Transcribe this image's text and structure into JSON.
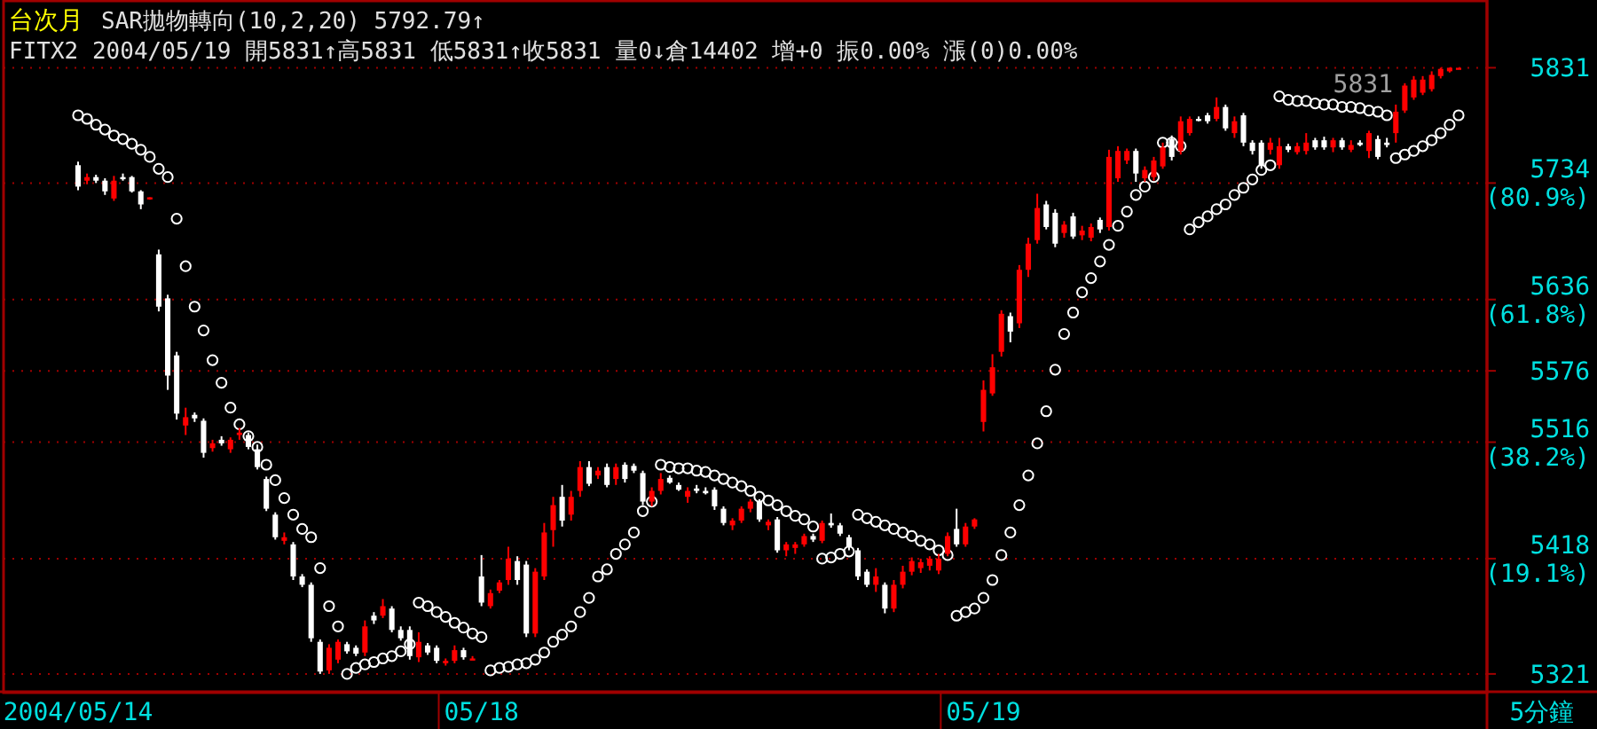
{
  "chart_data": {
    "type": "candlestick",
    "title": "台次月",
    "subtitle": "SAR拋物轉向(10,2,20) 5792.79↑",
    "annotations": [
      "FITX2 2004/05/19 開5831↑高5831 低5831↑收5831 量0↓倉14402 增+0 振0.00% 漲(0)0.00%",
      "5831"
    ],
    "xlabel": "5分鐘",
    "categories": [
      "2004/05/14",
      null,
      null,
      null,
      null,
      null,
      null,
      null,
      null,
      null,
      null,
      null,
      null,
      null,
      null,
      null,
      null,
      null,
      null,
      null,
      null,
      null,
      null,
      null,
      null,
      null,
      null,
      null,
      null,
      null,
      null,
      null,
      null,
      null,
      null,
      null,
      null,
      null,
      null,
      null,
      null,
      null,
      null,
      null,
      null,
      "05/18",
      null,
      null,
      null,
      null,
      null,
      null,
      null,
      null,
      null,
      null,
      null,
      null,
      null,
      null,
      null,
      null,
      null,
      null,
      null,
      null,
      null,
      null,
      null,
      null,
      null,
      null,
      null,
      null,
      null,
      null,
      null,
      null,
      null,
      null,
      null,
      null,
      null,
      null,
      null,
      null,
      null,
      null,
      null,
      null,
      null,
      null,
      null,
      null,
      null,
      null,
      null,
      null,
      null,
      null,
      null,
      "05/19",
      null,
      null,
      null,
      null,
      null,
      null,
      null,
      null,
      null,
      null,
      null,
      null,
      null,
      null,
      null,
      null,
      null,
      null,
      null,
      null,
      null,
      null,
      null,
      null,
      null,
      null,
      null,
      null,
      null,
      null,
      null,
      null,
      null,
      null,
      null,
      null,
      null,
      null,
      null,
      null,
      null,
      null,
      null,
      null,
      null,
      null,
      null,
      null,
      null,
      null,
      null,
      null,
      null
    ],
    "ohlc": [
      [
        5749,
        5752,
        5728,
        5731
      ],
      [
        5736,
        5742,
        5733,
        5739
      ],
      [
        5739,
        5741,
        5734,
        5736
      ],
      [
        5736,
        5738,
        5724,
        5727
      ],
      [
        5721,
        5740,
        5719,
        5736
      ],
      [
        5739,
        5742,
        5736,
        5738
      ],
      [
        5739,
        5740,
        5726,
        5727
      ],
      [
        5727,
        5728,
        5712,
        5716
      ],
      [
        5721,
        5722,
        5720,
        5722
      ],
      [
        5674,
        5678,
        5626,
        5630
      ],
      [
        5637,
        5640,
        5560,
        5572
      ],
      [
        5589,
        5592,
        5535,
        5540
      ],
      [
        5530,
        5545,
        5522,
        5537
      ],
      [
        5539,
        5541,
        5533,
        5536
      ],
      [
        5534,
        5536,
        5503,
        5507
      ],
      [
        5511,
        5518,
        5508,
        5515
      ],
      [
        5518,
        5521,
        5513,
        5515
      ],
      [
        5510,
        5520,
        5507,
        5518
      ],
      [
        5522,
        5528,
        5518,
        5524
      ],
      [
        5522,
        5524,
        5510,
        5512
      ],
      [
        5510,
        5514,
        5493,
        5495
      ],
      [
        5485,
        5487,
        5458,
        5460
      ],
      [
        5455,
        5457,
        5434,
        5436
      ],
      [
        5433,
        5440,
        5430,
        5436
      ],
      [
        5430,
        5432,
        5400,
        5403
      ],
      [
        5403,
        5405,
        5394,
        5396
      ],
      [
        5396,
        5398,
        5348,
        5351
      ],
      [
        5348,
        5350,
        5321,
        5323
      ],
      [
        5324,
        5346,
        5321,
        5343
      ],
      [
        5333,
        5350,
        5330,
        5348
      ],
      [
        5346,
        5348,
        5338,
        5340
      ],
      [
        5343,
        5345,
        5336,
        5338
      ],
      [
        5339,
        5366,
        5336,
        5361
      ],
      [
        5370,
        5373,
        5363,
        5366
      ],
      [
        5370,
        5384,
        5368,
        5378
      ],
      [
        5376,
        5378,
        5356,
        5358
      ],
      [
        5358,
        5361,
        5349,
        5351
      ],
      [
        5358,
        5361,
        5333,
        5336
      ],
      [
        5335,
        5356,
        5331,
        5348
      ],
      [
        5345,
        5347,
        5337,
        5339
      ],
      [
        5343,
        5345,
        5330,
        5332
      ],
      [
        5330,
        5334,
        5328,
        5332
      ],
      [
        5332,
        5345,
        5330,
        5341
      ],
      [
        5341,
        5343,
        5333,
        5335
      ],
      [
        5334,
        5336,
        5333,
        5334
      ],
      [
        5403,
        5421,
        5378,
        5381
      ],
      [
        5378,
        5392,
        5376,
        5389
      ],
      [
        5391,
        5400,
        5389,
        5398
      ],
      [
        5400,
        5428,
        5396,
        5418
      ],
      [
        5416,
        5420,
        5396,
        5400
      ],
      [
        5413,
        5416,
        5352,
        5355
      ],
      [
        5355,
        5410,
        5352,
        5407
      ],
      [
        5403,
        5448,
        5400,
        5440
      ],
      [
        5442,
        5470,
        5428,
        5463
      ],
      [
        5470,
        5480,
        5445,
        5450
      ],
      [
        5455,
        5475,
        5450,
        5470
      ],
      [
        5475,
        5500,
        5470,
        5495
      ],
      [
        5495,
        5500,
        5479,
        5481
      ],
      [
        5488,
        5495,
        5485,
        5492
      ],
      [
        5495,
        5498,
        5478,
        5480
      ],
      [
        5485,
        5498,
        5480,
        5495
      ],
      [
        5497,
        5499,
        5482,
        5485
      ],
      [
        5496,
        5498,
        5490,
        5492
      ],
      [
        5490,
        5492,
        5463,
        5466
      ],
      [
        5466,
        5478,
        5462,
        5475
      ],
      [
        5475,
        5490,
        5472,
        5485
      ],
      [
        5486,
        5488,
        5481,
        5482
      ],
      [
        5480,
        5482,
        5475,
        5476
      ],
      [
        5470,
        5478,
        5465,
        5475
      ],
      [
        5477,
        5480,
        5473,
        5475
      ],
      [
        5475,
        5478,
        5472,
        5473
      ],
      [
        5476,
        5478,
        5459,
        5462
      ],
      [
        5460,
        5462,
        5446,
        5448
      ],
      [
        5446,
        5452,
        5442,
        5450
      ],
      [
        5450,
        5462,
        5448,
        5460
      ],
      [
        5460,
        5468,
        5457,
        5466
      ],
      [
        5466,
        5468,
        5449,
        5451
      ],
      [
        5446,
        5451,
        5442,
        5449
      ],
      [
        5451,
        5453,
        5423,
        5425
      ],
      [
        5425,
        5432,
        5420,
        5430
      ],
      [
        5427,
        5432,
        5422,
        5430
      ],
      [
        5430,
        5439,
        5428,
        5437
      ],
      [
        5437,
        5439,
        5432,
        5434
      ],
      [
        5433,
        5450,
        5431,
        5448
      ],
      [
        5448,
        5456,
        5444,
        5446
      ],
      [
        5446,
        5448,
        5437,
        5439
      ],
      [
        5436,
        5438,
        5425,
        5428
      ],
      [
        5425,
        5427,
        5400,
        5403
      ],
      [
        5407,
        5409,
        5394,
        5396
      ],
      [
        5396,
        5410,
        5390,
        5403
      ],
      [
        5396,
        5398,
        5372,
        5376
      ],
      [
        5376,
        5400,
        5373,
        5396
      ],
      [
        5396,
        5412,
        5393,
        5407
      ],
      [
        5407,
        5419,
        5404,
        5416
      ],
      [
        5410,
        5418,
        5406,
        5415
      ],
      [
        5412,
        5420,
        5408,
        5418
      ],
      [
        5408,
        5422,
        5405,
        5418
      ],
      [
        5422,
        5440,
        5420,
        5437
      ],
      [
        5443,
        5460,
        5428,
        5430
      ],
      [
        5430,
        5448,
        5428,
        5445
      ],
      [
        5445,
        5452,
        5443,
        5451
      ],
      [
        5533,
        5568,
        5525,
        5560
      ],
      [
        5557,
        5590,
        5555,
        5579
      ],
      [
        5592,
        5627,
        5588,
        5624
      ],
      [
        5622,
        5625,
        5600,
        5609
      ],
      [
        5616,
        5665,
        5612,
        5661
      ],
      [
        5661,
        5688,
        5655,
        5683
      ],
      [
        5686,
        5725,
        5683,
        5713
      ],
      [
        5716,
        5719,
        5695,
        5697
      ],
      [
        5709,
        5712,
        5680,
        5683
      ],
      [
        5692,
        5702,
        5688,
        5699
      ],
      [
        5706,
        5709,
        5687,
        5689
      ],
      [
        5690,
        5698,
        5686,
        5694
      ],
      [
        5688,
        5700,
        5685,
        5697
      ],
      [
        5703,
        5705,
        5692,
        5695
      ],
      [
        5697,
        5762,
        5694,
        5756
      ],
      [
        5738,
        5765,
        5735,
        5761
      ],
      [
        5753,
        5763,
        5750,
        5761
      ],
      [
        5761,
        5763,
        5735,
        5742
      ],
      [
        5738,
        5748,
        5735,
        5745
      ],
      [
        5739,
        5756,
        5736,
        5753
      ],
      [
        5748,
        5768,
        5746,
        5764
      ],
      [
        5771,
        5774,
        5753,
        5756
      ],
      [
        5761,
        5790,
        5758,
        5786
      ],
      [
        5776,
        5790,
        5774,
        5788
      ],
      [
        5788,
        5790,
        5786,
        5787
      ],
      [
        5791,
        5793,
        5784,
        5786
      ],
      [
        5788,
        5806,
        5786,
        5798
      ],
      [
        5798,
        5800,
        5778,
        5780
      ],
      [
        5776,
        5790,
        5772,
        5786
      ],
      [
        5791,
        5793,
        5765,
        5768
      ],
      [
        5768,
        5770,
        5758,
        5761
      ],
      [
        5768,
        5770,
        5746,
        5749
      ],
      [
        5762,
        5772,
        5758,
        5768
      ],
      [
        5749,
        5772,
        5746,
        5765
      ],
      [
        5765,
        5767,
        5760,
        5762
      ],
      [
        5760,
        5768,
        5758,
        5765
      ],
      [
        5761,
        5776,
        5758,
        5768
      ],
      [
        5770,
        5772,
        5762,
        5764
      ],
      [
        5770,
        5773,
        5762,
        5764
      ],
      [
        5764,
        5772,
        5760,
        5770
      ],
      [
        5770,
        5772,
        5762,
        5764
      ],
      [
        5762,
        5770,
        5760,
        5766
      ],
      [
        5768,
        5770,
        5765,
        5766
      ],
      [
        5761,
        5778,
        5755,
        5776
      ],
      [
        5771,
        5774,
        5754,
        5756
      ],
      [
        5768,
        5772,
        5764,
        5766
      ],
      [
        5776,
        5800,
        5768,
        5794
      ],
      [
        5795,
        5818,
        5793,
        5816
      ],
      [
        5806,
        5824,
        5804,
        5821
      ],
      [
        5810,
        5824,
        5808,
        5821
      ],
      [
        5813,
        5828,
        5811,
        5825
      ],
      [
        5824,
        5831,
        5822,
        5830
      ],
      [
        5828,
        5831,
        5827,
        5831
      ],
      [
        5831,
        5831,
        5831,
        5831
      ]
    ],
    "colors": [
      "#ffffff",
      "#ff0000",
      "#ffffff",
      "#ffffff",
      "#ff0000",
      "#ffffff",
      "#ffffff",
      "#ffffff",
      "#ff0000",
      "#ffffff",
      "#ffffff",
      "#ffffff",
      "#ff0000",
      "#ffffff",
      "#ffffff",
      "#ff0000",
      "#ffffff",
      "#ff0000",
      "#ff0000",
      "#ffffff",
      "#ffffff",
      "#ffffff",
      "#ffffff",
      "#ff0000",
      "#ffffff",
      "#ffffff",
      "#ffffff",
      "#ffffff",
      "#ff0000",
      "#ff0000",
      "#ffffff",
      "#ffffff",
      "#ff0000",
      "#ffffff",
      "#ff0000",
      "#ffffff",
      "#ffffff",
      "#ffffff",
      "#ff0000",
      "#ffffff",
      "#ffffff",
      "#ff0000",
      "#ff0000",
      "#ffffff",
      "#ff0000",
      "#ffffff",
      "#ff0000",
      "#ff0000",
      "#ff0000",
      "#ffffff",
      "#ffffff",
      "#ff0000",
      "#ff0000",
      "#ff0000",
      "#ffffff",
      "#ff0000",
      "#ff0000",
      "#ffffff",
      "#ff0000",
      "#ffffff",
      "#ff0000",
      "#ffffff",
      "#ffffff",
      "#ffffff",
      "#ff0000",
      "#ff0000",
      "#ffffff",
      "#ffffff",
      "#ff0000",
      "#ffffff",
      "#ffffff",
      "#ffffff",
      "#ffffff",
      "#ff0000",
      "#ff0000",
      "#ff0000",
      "#ffffff",
      "#ff0000",
      "#ffffff",
      "#ff0000",
      "#ff0000",
      "#ff0000",
      "#ffffff",
      "#ff0000",
      "#ffffff",
      "#ffffff",
      "#ffffff",
      "#ffffff",
      "#ffffff",
      "#ff0000",
      "#ffffff",
      "#ff0000",
      "#ff0000",
      "#ff0000",
      "#ff0000",
      "#ff0000",
      "#ff0000",
      "#ff0000",
      "#ffffff",
      "#ff0000",
      "#ff0000",
      "#ff0000",
      "#ff0000",
      "#ff0000",
      "#ffffff",
      "#ff0000",
      "#ff0000",
      "#ff0000",
      "#ffffff",
      "#ffffff",
      "#ff0000",
      "#ffffff",
      "#ff0000",
      "#ff0000",
      "#ffffff",
      "#ff0000",
      "#ff0000",
      "#ff0000",
      "#ffffff",
      "#ff0000",
      "#ff0000",
      "#ff0000",
      "#ffffff",
      "#ff0000",
      "#ff0000",
      "#ffffff",
      "#ffffff",
      "#ff0000",
      "#ffffff",
      "#ff0000",
      "#ffffff",
      "#ffffff",
      "#ffffff",
      "#ff0000",
      "#ff0000",
      "#ffffff",
      "#ff0000",
      "#ff0000",
      "#ffffff",
      "#ffffff",
      "#ff0000",
      "#ffffff",
      "#ff0000",
      "#ffffff",
      "#ff0000",
      "#ffffff",
      "#ffffff",
      "#ff0000",
      "#ff0000",
      "#ff0000",
      "#ff0000",
      "#ff0000",
      "#ff0000",
      "#ff0000",
      "#ff0000"
    ],
    "series": [
      {
        "type": "scatter",
        "color": "#ffffff",
        "marker": "circle",
        "values": [
          5791,
          5788,
          5783,
          5779,
          5774,
          5771,
          5767,
          5762,
          5756,
          5746,
          5739,
          5704,
          5664,
          5630,
          5610,
          5585,
          5566,
          5545,
          5531,
          5521,
          5512,
          5497,
          5484,
          5469,
          5455,
          5443,
          5436,
          5410,
          5378,
          5361,
          5321,
          5326,
          5329,
          5331,
          5334,
          5336,
          5340,
          5346,
          5381,
          5378,
          5373,
          5369,
          5364,
          5360,
          5355,
          5352,
          5324,
          5326,
          5327,
          5329,
          5330,
          5333,
          5339,
          5348,
          5354,
          5361,
          5373,
          5385,
          5403,
          5409,
          5422,
          5430,
          5440,
          5458,
          5466,
          5497,
          5495,
          5494,
          5494,
          5492,
          5491,
          5488,
          5485,
          5482,
          5479,
          5475,
          5470,
          5467,
          5463,
          5458,
          5454,
          5451,
          5445,
          5418,
          5419,
          5422,
          5424,
          5455,
          5452,
          5449,
          5446,
          5443,
          5440,
          5437,
          5433,
          5430,
          5425,
          5421,
          5370,
          5373,
          5376,
          5385,
          5400,
          5421,
          5440,
          5463,
          5488,
          5515,
          5542,
          5577,
          5607,
          5625,
          5642,
          5654,
          5668,
          5682,
          5698,
          5710,
          5724,
          5731,
          5739,
          5768,
          5768,
          5765,
          5695,
          5701,
          5706,
          5712,
          5716,
          5724,
          5730,
          5737,
          5745,
          5749,
          5807,
          5804,
          5803,
          5803,
          5801,
          5800,
          5800,
          5798,
          5798,
          5797,
          5795,
          5794,
          5791,
          5755,
          5758,
          5761,
          5765,
          5770,
          5776,
          5783,
          5791
        ]
      }
    ],
    "ylim": [
      5306,
      5888
    ],
    "yticks": [
      5831,
      {
        "value": 5734,
        "label": "5734\n(80.9%)"
      },
      {
        "value": 5636,
        "label": "5636\n(61.8%)"
      },
      5576,
      {
        "value": 5516,
        "label": "5516\n(38.2%)"
      },
      {
        "value": 5418,
        "label": "5418\n(19.1%)"
      },
      5321
    ],
    "grid": "y"
  }
}
